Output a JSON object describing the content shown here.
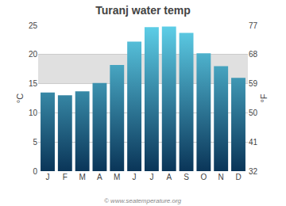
{
  "chart_data": {
    "type": "bar",
    "title": "Turanj water temp",
    "categories": [
      "J",
      "F",
      "M",
      "A",
      "M",
      "J",
      "J",
      "A",
      "S",
      "O",
      "N",
      "D"
    ],
    "values": [
      13.5,
      13.0,
      13.7,
      15.1,
      18.2,
      22.2,
      24.7,
      24.8,
      23.7,
      20.2,
      18.0,
      16.0
    ],
    "color": {
      "bottom": "#0a3558",
      "top": "#5ecfe8"
    },
    "ylabel": "°C",
    "y2label": "°F",
    "ylim": [
      0,
      25
    ],
    "yticks": [
      0,
      5,
      10,
      15,
      20,
      25
    ],
    "y2lim": [
      32,
      77
    ],
    "y2ticks": [
      32,
      41,
      50,
      59,
      68,
      77
    ],
    "band": {
      "from": 15,
      "to": 20,
      "color": "#e0e0e0"
    },
    "annotations": [
      "© www.seatemperature.org"
    ],
    "grid": true
  }
}
